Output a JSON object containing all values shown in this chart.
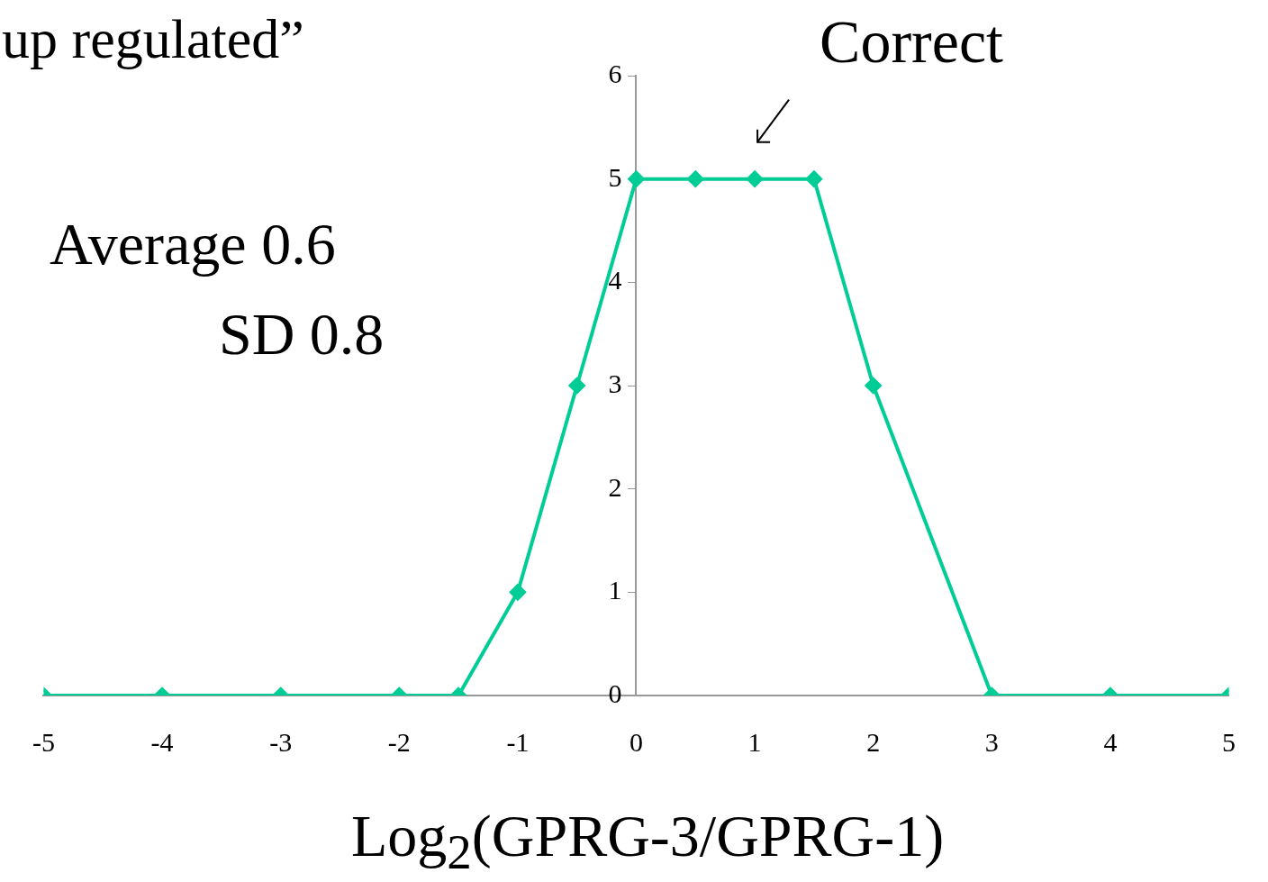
{
  "chart_data": {
    "type": "line",
    "title": "up regulated”",
    "xlabel": "Log$_{2}$(GPRG-3/GPRG-1)",
    "x": [
      -5,
      -4,
      -3,
      -2,
      -1.5,
      -1,
      -0.5,
      0,
      0.5,
      1,
      1.5,
      2,
      3,
      4,
      5
    ],
    "series": [
      {
        "color": "#00cc96",
        "values": [
          0,
          0,
          0,
          0,
          0,
          1,
          3,
          5,
          5,
          5,
          5,
          3,
          0,
          0,
          0
        ]
      }
    ],
    "xlim": [
      -5,
      5
    ],
    "xticks": [
      -5,
      -4,
      -3,
      -2,
      -1,
      0,
      1,
      2,
      3,
      4,
      5
    ],
    "ylim": [
      0,
      6
    ],
    "yticks": [
      0,
      1,
      2,
      3,
      4,
      5,
      6
    ],
    "annotations": [
      {
        "text": "Correct",
        "x": 1,
        "y": 5
      },
      "Average 0.6",
      "SD 0.8"
    ],
    "grid": false,
    "legend": false,
    "marker": "diamond",
    "line_style": "solid"
  }
}
